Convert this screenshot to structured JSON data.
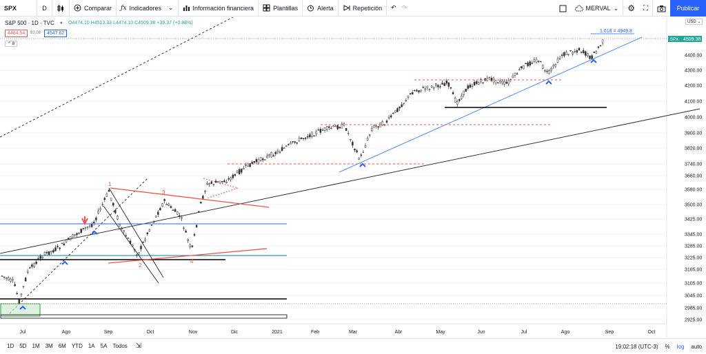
{
  "toolbar": {
    "symbol": "SPX",
    "interval": "D",
    "compare_label": "Comparar",
    "indicators_label": "Indicadores",
    "financials_label": "Información financiera",
    "templates_label": "Plantillas",
    "alert_label": "Alerta",
    "replay_label": "Repetición",
    "layout_name": "MERVAL",
    "publish_label": "Publicar"
  },
  "legend": {
    "title": "S&P 500 · 1D · TVC",
    "ohlc": "O4474.10 H4513.33 L4474.10 C4509.38 +39.37 (+0.88%)",
    "sell_price": "4464.54",
    "spread": "83.08",
    "buy_price": "4547.62",
    "collapse_count": "8"
  },
  "price_scale": {
    "currency": "USD",
    "symbol_tag": "SPX",
    "last_price": "4509.38",
    "fib_label": "1.618 = 4949.8",
    "ticks": [
      "4400.00",
      "4300.00",
      "4200.00",
      "4100.00",
      "4000.00",
      "3900.00",
      "3820.00",
      "3740.00",
      "3660.00",
      "3580.00",
      "3500.00",
      "3425.00",
      "3345.00",
      "3285.00",
      "3225.00",
      "3165.00",
      "3105.00",
      "3045.00",
      "2985.00",
      "2925.00"
    ]
  },
  "time_scale": {
    "labels": [
      "Jul",
      "Ago",
      "Sep",
      "Oct",
      "Nov",
      "Dic",
      "2021",
      "Feb",
      "Mar",
      "Abr",
      "May",
      "Jun",
      "Jul",
      "Ago",
      "Sep",
      "Oct"
    ]
  },
  "annotations": {
    "wave_labels": [
      "1",
      "2",
      "3",
      "4"
    ]
  },
  "bottom_bar": {
    "ranges": [
      "1D",
      "5D",
      "1M",
      "3M",
      "6M",
      "YTD",
      "1A",
      "5A",
      "Todos"
    ],
    "clock": "19:02:18 (UTC-3)",
    "percent": "%",
    "log": "log",
    "auto": "auto"
  },
  "colors": {
    "accent": "#2962ff",
    "up": "#26a69a",
    "down": "#ef5350",
    "candle_body": "#333333"
  }
}
